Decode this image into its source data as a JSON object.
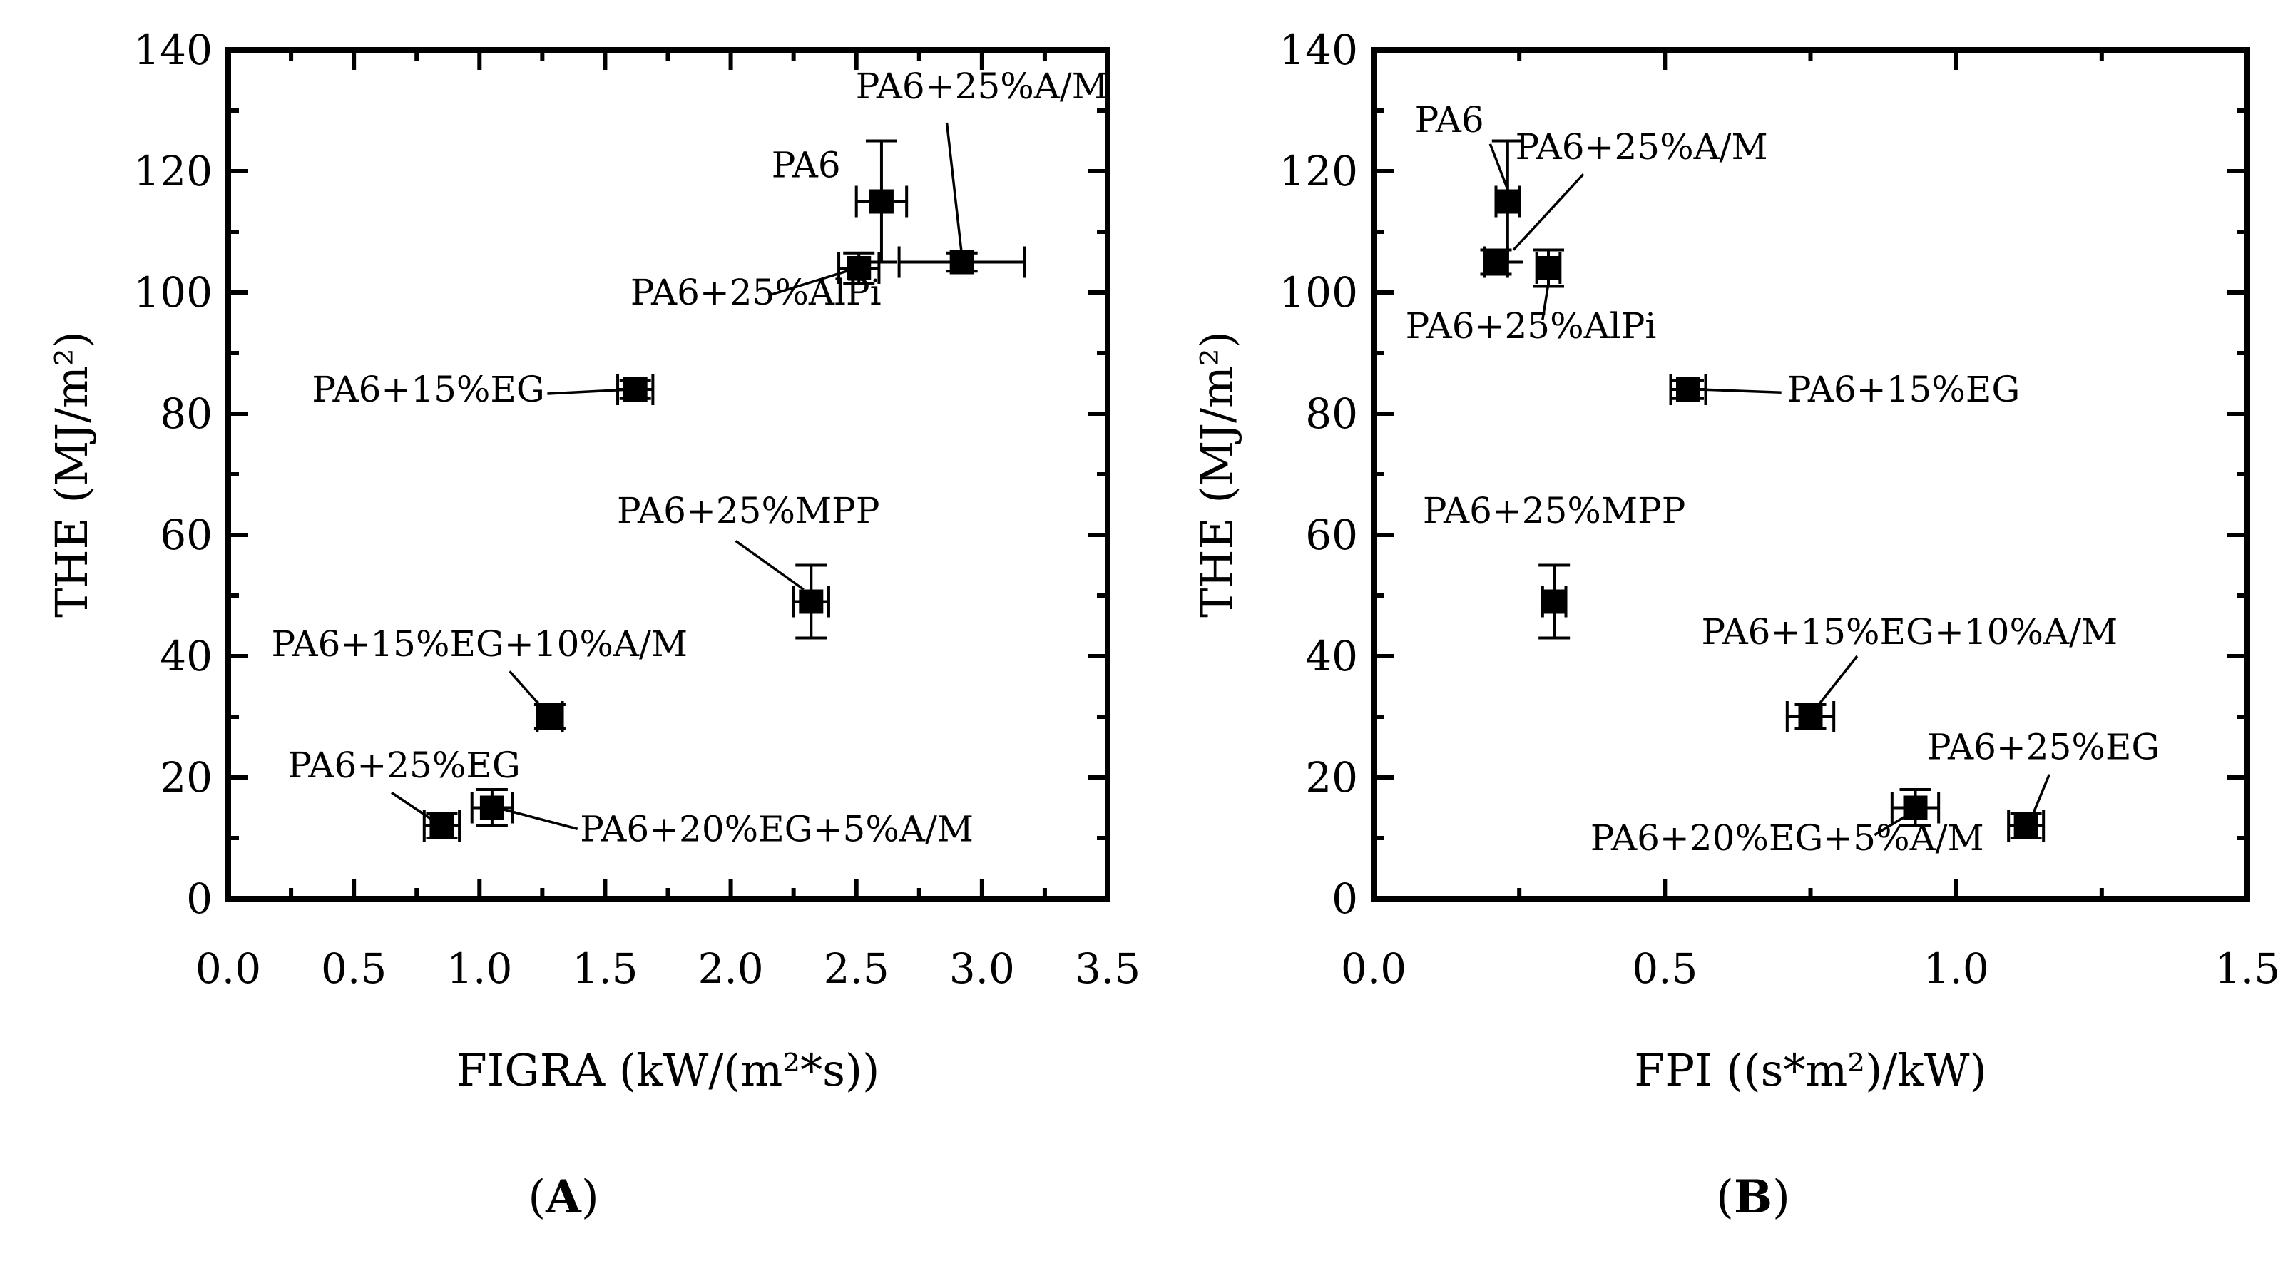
{
  "chart_data": [
    {
      "type": "scatter",
      "panel": "A",
      "xlabel": "FIGRA (kW/(m²*s))",
      "ylabel": "THE (MJ/m²)",
      "xlim": [
        0,
        3.5
      ],
      "ylim": [
        0,
        140
      ],
      "xticks": [
        0.0,
        0.5,
        1.0,
        1.5,
        2.0,
        2.5,
        3.0,
        3.5
      ],
      "xtick_labels": [
        "0.0",
        "0.5",
        "1.0",
        "1.5",
        "2.0",
        "2.5",
        "3.0",
        "3.5"
      ],
      "xminor": [
        0.25,
        0.75,
        1.25,
        1.75,
        2.25,
        2.75,
        3.25
      ],
      "yticks": [
        0,
        20,
        40,
        60,
        80,
        100,
        120,
        140
      ],
      "ytick_labels": [
        "0",
        "20",
        "40",
        "60",
        "80",
        "100",
        "120",
        "140"
      ],
      "yminor": [
        10,
        30,
        50,
        70,
        90,
        110,
        130
      ],
      "grid": false,
      "points": [
        {
          "label": "PA6",
          "x": 2.6,
          "y": 115,
          "xerr": 0.1,
          "yerr": 10,
          "lx": 2.3,
          "ly": 119,
          "anchor": "middle"
        },
        {
          "label": "PA6+25%A/M",
          "x": 2.92,
          "y": 105,
          "xerr": 0.25,
          "yerr": 1.5,
          "lx": 3.0,
          "ly": 132,
          "anchor": "middle",
          "leader": [
            2.86,
            128,
            2.92,
            106
          ]
        },
        {
          "label": "PA6+25%AlPi",
          "x": 2.51,
          "y": 104,
          "xerr": 0.08,
          "yerr": 2.5,
          "lx": 2.1,
          "ly": 98,
          "anchor": "middle",
          "leader": [
            2.15,
            99.5,
            2.5,
            104
          ]
        },
        {
          "label": "PA6+15%EG",
          "x": 1.62,
          "y": 84,
          "xerr": 0.07,
          "yerr": 1.5,
          "lx": 1.26,
          "ly": 82,
          "anchor": "end",
          "leader": [
            1.27,
            83.3,
            1.6,
            84
          ]
        },
        {
          "label": "PA6+25%MPP",
          "x": 2.32,
          "y": 49,
          "xerr": 0.07,
          "yerr": 6,
          "lx": 2.07,
          "ly": 62,
          "anchor": "middle",
          "leader": [
            2.02,
            59,
            2.29,
            51
          ]
        },
        {
          "label": "PA6+15%EG+10%A/M",
          "x": 1.28,
          "y": 30,
          "xerr": 0.05,
          "yerr": 2,
          "lx": 1.0,
          "ly": 40,
          "anchor": "middle",
          "leader": [
            1.12,
            37.5,
            1.26,
            31
          ]
        },
        {
          "label": "PA6+25%EG",
          "x": 0.85,
          "y": 12,
          "xerr": 0.07,
          "yerr": 2,
          "lx": 0.7,
          "ly": 20,
          "anchor": "middle",
          "leader": [
            0.65,
            17.5,
            0.83,
            12.5
          ]
        },
        {
          "label": "PA6+20%EG+5%A/M",
          "x": 1.05,
          "y": 15,
          "xerr": 0.08,
          "yerr": 3,
          "lx": 1.4,
          "ly": 9.5,
          "anchor": "start",
          "leader": [
            1.39,
            11.5,
            1.07,
            15
          ]
        }
      ]
    },
    {
      "type": "scatter",
      "panel": "B",
      "xlabel": "FPI ((s*m²)/kW)",
      "ylabel": "THE (MJ/m²)",
      "xlim": [
        0,
        1.5
      ],
      "ylim": [
        0,
        140
      ],
      "xticks": [
        0.0,
        0.5,
        1.0,
        1.5
      ],
      "xtick_labels": [
        "0.0",
        "0.5",
        "1.0",
        "1.5"
      ],
      "xminor": [
        0.25,
        0.75,
        1.25
      ],
      "yticks": [
        0,
        20,
        40,
        60,
        80,
        100,
        120,
        140
      ],
      "ytick_labels": [
        "0",
        "20",
        "40",
        "60",
        "80",
        "100",
        "120",
        "140"
      ],
      "yminor": [
        10,
        30,
        50,
        70,
        90,
        110,
        130
      ],
      "grid": false,
      "points": [
        {
          "label": "PA6",
          "x": 0.23,
          "y": 115,
          "xerr": 0.02,
          "yerr": 10,
          "lx": 0.13,
          "ly": 126.5,
          "anchor": "middle",
          "leader": [
            0.2,
            124.5,
            0.23,
            117
          ]
        },
        {
          "label": "PA6+25%A/M",
          "x": 0.21,
          "y": 105,
          "xerr": 0.02,
          "yerr": 2,
          "lx": 0.46,
          "ly": 122,
          "anchor": "middle",
          "leader": [
            0.36,
            119.5,
            0.24,
            107
          ]
        },
        {
          "label": "PA6+25%AlPi",
          "x": 0.3,
          "y": 104,
          "xerr": 0.02,
          "yerr": 3,
          "lx": 0.27,
          "ly": 92.5,
          "anchor": "middle",
          "leader": [
            0.29,
            95.5,
            0.3,
            101.5
          ]
        },
        {
          "label": "PA6+15%EG",
          "x": 0.54,
          "y": 84,
          "xerr": 0.03,
          "yerr": 1.5,
          "lx": 0.71,
          "ly": 82,
          "anchor": "start",
          "leader": [
            0.7,
            83.5,
            0.56,
            84
          ]
        },
        {
          "label": "PA6+25%MPP",
          "x": 0.31,
          "y": 49,
          "xerr": 0.02,
          "yerr": 6,
          "lx": 0.31,
          "ly": 62,
          "anchor": "middle"
        },
        {
          "label": "PA6+15%EG+10%A/M",
          "x": 0.75,
          "y": 30,
          "xerr": 0.04,
          "yerr": 2,
          "lx": 0.92,
          "ly": 42,
          "anchor": "middle",
          "leader": [
            0.83,
            40,
            0.76,
            31.5
          ]
        },
        {
          "label": "PA6+25%EG",
          "x": 1.12,
          "y": 12,
          "xerr": 0.03,
          "yerr": 2,
          "lx": 1.15,
          "ly": 23,
          "anchor": "middle",
          "leader": [
            1.16,
            20.5,
            1.13,
            13.5
          ]
        },
        {
          "label": "PA6+20%EG+5%A/M",
          "x": 0.93,
          "y": 15,
          "xerr": 0.04,
          "yerr": 3,
          "lx": 0.71,
          "ly": 8,
          "anchor": "middle",
          "leader": [
            0.86,
            10.5,
            0.92,
            14
          ]
        }
      ]
    }
  ],
  "captions": {
    "a": {
      "open": "(",
      "letter": "A",
      "close": ")"
    },
    "b": {
      "open": "(",
      "letter": "B",
      "close": ")"
    }
  },
  "colors": {
    "ink": "#000000",
    "background": "#ffffff"
  }
}
